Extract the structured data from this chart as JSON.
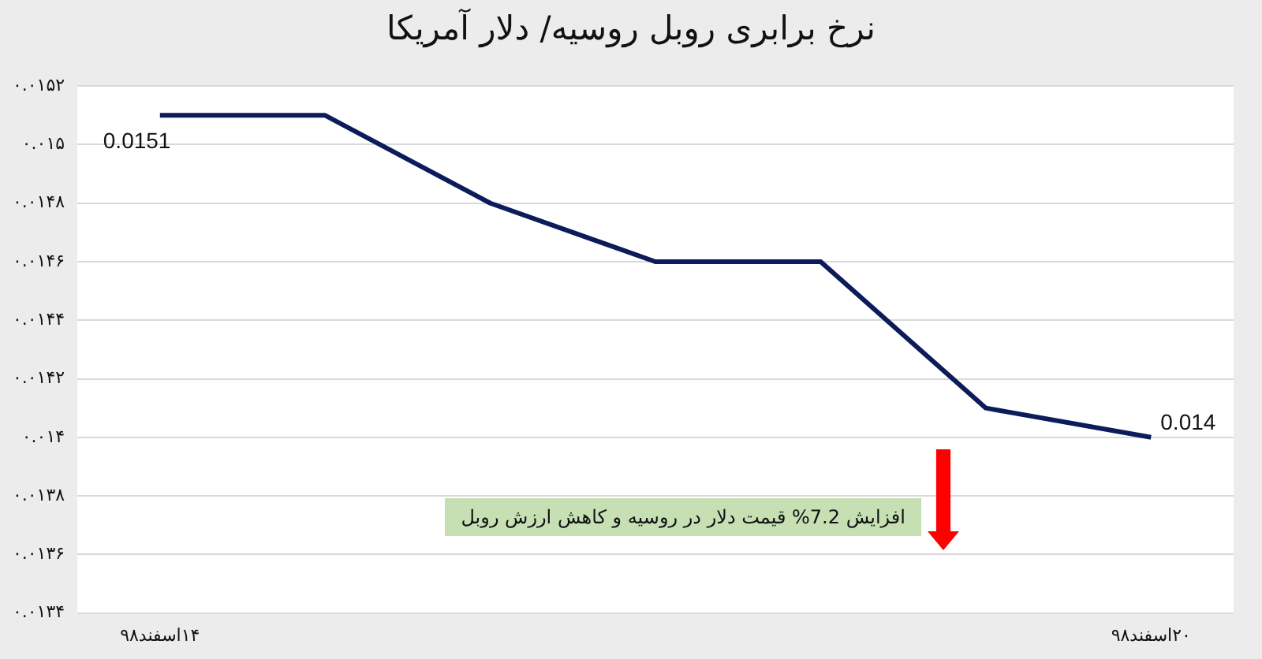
{
  "chart_data": {
    "type": "line",
    "title": "نرخ برابری روبل روسیه/ دلار آمریکا",
    "categories": [
      "۱۴اسفند۹۸",
      null,
      null,
      null,
      null,
      null,
      "۲۰اسفند۹۸"
    ],
    "series": [
      {
        "color": "#0c1c5a",
        "values": [
          0.0151,
          0.0151,
          0.0148,
          0.0146,
          0.0146,
          0.0141,
          0.014
        ],
        "value_labels": [
          "0.0151",
          null,
          null,
          null,
          null,
          null,
          "0.014"
        ]
      }
    ],
    "ylim": [
      0.0134,
      0.0152
    ],
    "yticks": [
      {
        "value": 0.0134,
        "label": "۰.۰۱۳۴"
      },
      {
        "value": 0.0136,
        "label": "۰.۰۱۳۶"
      },
      {
        "value": 0.0138,
        "label": "۰.۰۱۳۸"
      },
      {
        "value": 0.014,
        "label": "۰.۰۱۴"
      },
      {
        "value": 0.0142,
        "label": "۰.۰۱۴۲"
      },
      {
        "value": 0.0144,
        "label": "۰.۰۱۴۴"
      },
      {
        "value": 0.0146,
        "label": "۰.۰۱۴۶"
      },
      {
        "value": 0.0148,
        "label": "۰.۰۱۴۸"
      },
      {
        "value": 0.015,
        "label": "۰.۰۱۵"
      },
      {
        "value": 0.0152,
        "label": "۰.۰۱۵۲"
      }
    ],
    "annotations": [
      "افزایش 7.2%  قیمت دلار در روسیه و کاهش ارزش روبل"
    ],
    "grid": "y",
    "legend": false,
    "marker": "none",
    "line_style": "solid"
  }
}
